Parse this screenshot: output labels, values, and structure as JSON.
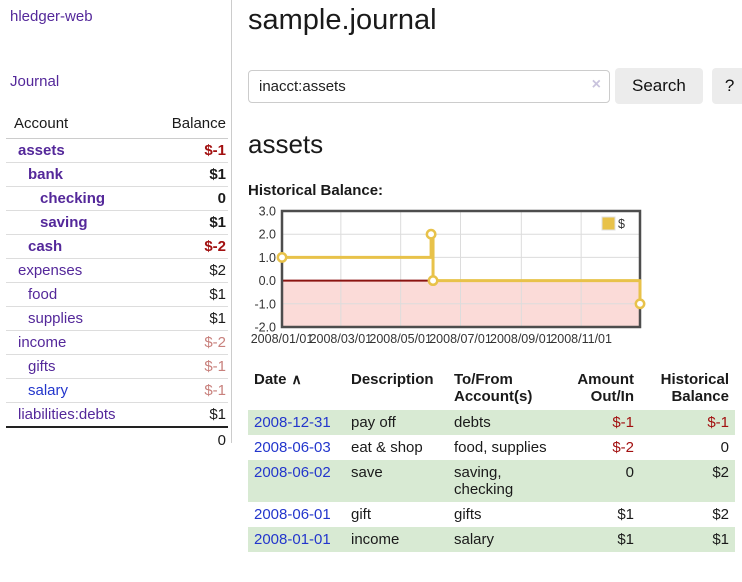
{
  "app": {
    "title": "hledger-web",
    "nav_journal": "Journal"
  },
  "sidebar": {
    "header": {
      "account": "Account",
      "balance": "Balance"
    },
    "accounts": [
      {
        "name": "assets",
        "depth": 1,
        "bold": true,
        "balance": "$-1",
        "balance_style": "neg"
      },
      {
        "name": "bank",
        "depth": 2,
        "bold": true,
        "balance": "$1",
        "balance_style": "pos"
      },
      {
        "name": "checking",
        "depth": 3,
        "bold": true,
        "balance": "0",
        "balance_style": "pos"
      },
      {
        "name": "saving",
        "depth": 3,
        "bold": true,
        "balance": "$1",
        "balance_style": "pos"
      },
      {
        "name": "cash",
        "depth": 2,
        "bold": true,
        "balance": "$-2",
        "balance_style": "neg"
      },
      {
        "name": "expenses",
        "depth": 1,
        "bold": false,
        "balance": "$2",
        "balance_style": "pos"
      },
      {
        "name": "food",
        "depth": 2,
        "bold": false,
        "balance": "$1",
        "balance_style": "pos"
      },
      {
        "name": "supplies",
        "depth": 2,
        "bold": false,
        "balance": "$1",
        "balance_style": "pos"
      },
      {
        "name": "income",
        "depth": 1,
        "bold": false,
        "balance": "$-2",
        "balance_style": "neg-muted"
      },
      {
        "name": "gifts",
        "depth": 2,
        "bold": false,
        "balance": "$-1",
        "balance_style": "neg-muted"
      },
      {
        "name": "salary",
        "depth": 2,
        "bold": false,
        "name_style": "blue",
        "balance": "$-1",
        "balance_style": "neg-muted"
      },
      {
        "name": "liabilities:debts",
        "depth": 1,
        "bold": false,
        "balance": "$1",
        "balance_style": "pos"
      }
    ],
    "total": "0"
  },
  "header": {
    "title": "sample.journal"
  },
  "search": {
    "value": "inacct:assets",
    "clear_icon": "×",
    "button": "Search",
    "help_button": "?"
  },
  "main": {
    "account_title": "assets",
    "chart_label": "Historical Balance:"
  },
  "chart_data": {
    "type": "line",
    "title": "Historical Balance of assets",
    "step": true,
    "series": [
      {
        "name": "$",
        "color": "#e8c24a",
        "points": [
          [
            "2008-01-01",
            1
          ],
          [
            "2008-06-01",
            2
          ],
          [
            "2008-06-03",
            0
          ],
          [
            "2008-12-31",
            -1
          ]
        ]
      }
    ],
    "x_domain": [
      "2008-01-01",
      "2008-12-31"
    ],
    "ylim": [
      -2.0,
      3.0
    ],
    "yticks": [
      "3.0",
      "2.0",
      "1.0",
      "0.0",
      "-1.0",
      "-2.0"
    ],
    "ytick_values": [
      3,
      2,
      1,
      0,
      -1,
      -2
    ],
    "xticks": [
      "2008/01/01",
      "2008/03/01",
      "2008/05/01",
      "2008/07/01",
      "2008/09/01",
      "2008/11/01"
    ],
    "legend": {
      "label": "$",
      "position": "top-right"
    },
    "grid": true,
    "colors": {
      "negative_region_fill": "#fbdbd8",
      "zero_line": "#8b1310",
      "gridline": "#dcdcdc",
      "border": "#4d4d4d",
      "marker_fill": "#ffffff"
    }
  },
  "register": {
    "columns": {
      "date": "Date",
      "description": "Description",
      "accounts": "To/From Account(s)",
      "amount": "Amount Out/In",
      "balance": "Historical Balance"
    },
    "sort_icon": "∧",
    "rows": [
      {
        "date": "2008-12-31",
        "description": "pay off",
        "accounts": "debts",
        "amount": "$-1",
        "amount_negative": true,
        "balance": "$-1",
        "balance_negative": true
      },
      {
        "date": "2008-06-03",
        "description": "eat & shop",
        "accounts": "food, supplies",
        "amount": "$-2",
        "amount_negative": true,
        "balance": "0",
        "balance_negative": false
      },
      {
        "date": "2008-06-02",
        "description": "save",
        "accounts": "saving, checking",
        "amount": "0",
        "amount_negative": false,
        "balance": "$2",
        "balance_negative": false
      },
      {
        "date": "2008-06-01",
        "description": "gift",
        "accounts": "gifts",
        "amount": "$1",
        "amount_negative": false,
        "balance": "$2",
        "balance_negative": false
      },
      {
        "date": "2008-01-01",
        "description": "income",
        "accounts": "salary",
        "amount": "$1",
        "amount_negative": false,
        "balance": "$1",
        "balance_negative": false
      }
    ]
  }
}
